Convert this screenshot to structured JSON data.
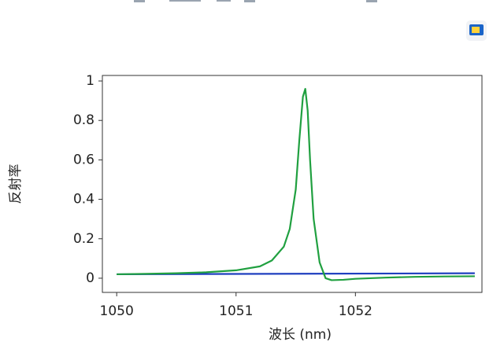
{
  "chart_data": {
    "type": "line",
    "xlabel": "波长 (nm)",
    "ylabel": "反射率",
    "xlim": [
      1049.88,
      1053.06
    ],
    "xticks": [
      1050,
      1051,
      1052
    ],
    "ylim": [
      -0.072,
      1.028
    ],
    "yticks": [
      0,
      0.2,
      0.4,
      0.6,
      0.8,
      1
    ],
    "grid": true,
    "series": [
      {
        "color": "#1f3fbf",
        "x": [
          1050,
          1053
        ],
        "values": [
          0.02,
          0.025
        ]
      },
      {
        "color": "#20a040",
        "x": [
          1050,
          1050.25,
          1050.5,
          1050.75,
          1051,
          1051.2,
          1051.3,
          1051.4,
          1051.45,
          1051.5,
          1051.53,
          1051.56,
          1051.58,
          1051.6,
          1051.62,
          1051.65,
          1051.7,
          1051.75,
          1051.8,
          1051.9,
          1052,
          1052.25,
          1052.5,
          1052.75,
          1053
        ],
        "values": [
          0.02,
          0.022,
          0.025,
          0.03,
          0.04,
          0.06,
          0.09,
          0.16,
          0.25,
          0.45,
          0.7,
          0.92,
          0.96,
          0.85,
          0.6,
          0.3,
          0.08,
          0.0,
          -0.01,
          -0.008,
          -0.003,
          0.003,
          0.007,
          0.009,
          0.01
        ]
      }
    ]
  }
}
